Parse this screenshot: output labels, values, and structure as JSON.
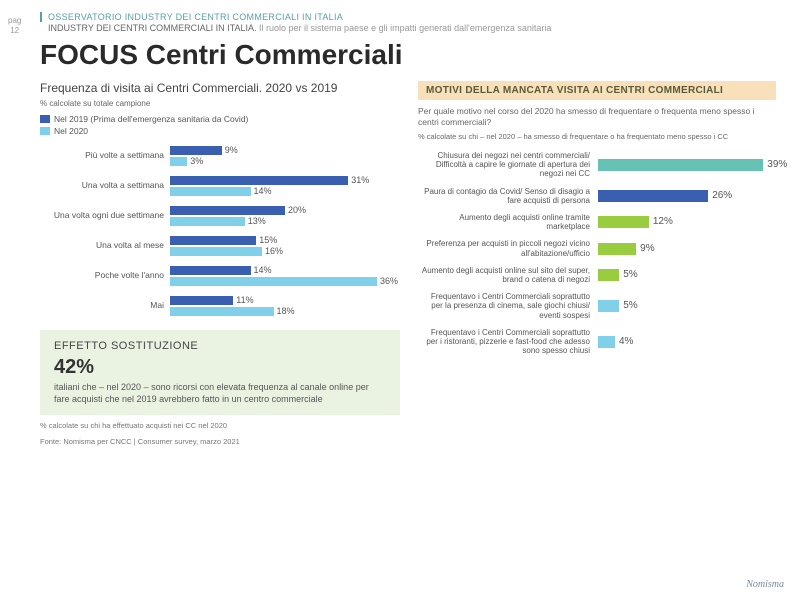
{
  "page": {
    "label": "pag",
    "number": "12"
  },
  "header": {
    "line1": "OSSERVATORIO INDUSTRY DEI CENTRI COMMERCIALI IN ITALIA",
    "line2_dark": "INDUSTRY DEI CENTRI COMMERCIALI IN ITALIA.",
    "line2_light": " Il ruolo per il sistema paese e gli impatti generati dall'emergenza sanitaria"
  },
  "title": "FOCUS Centri Commerciali",
  "left": {
    "section_title": "Frequenza di visita ai Centri Commerciali. 2020 vs 2019",
    "subnote": "% calcolate su totale campione",
    "legend": [
      {
        "label": "Nel 2019 (Prima dell'emergenza sanitaria da Covid)",
        "color": "#3b5fb0"
      },
      {
        "label": "Nel 2020",
        "color": "#7fd0e8"
      }
    ],
    "chart": {
      "max": 40,
      "bar_colors": [
        "#3b5fb0",
        "#7fd0e8"
      ],
      "rows": [
        {
          "label": "Più volte a settimana",
          "v2019": 9,
          "v2020": 3
        },
        {
          "label": "Una volta a settimana",
          "v2019": 31,
          "v2020": 14
        },
        {
          "label": "Una volta ogni due settimane",
          "v2019": 20,
          "v2020": 13
        },
        {
          "label": "Una volta al mese",
          "v2019": 15,
          "v2020": 16
        },
        {
          "label": "Poche volte l'anno",
          "v2019": 14,
          "v2020": 36
        },
        {
          "label": "Mai",
          "v2019": 11,
          "v2020": 18
        }
      ]
    },
    "effetto": {
      "title": "EFFETTO SOSTITUZIONE",
      "big": "42%",
      "text": "italiani che – nel 2020 – sono ricorsi con elevata frequenza al canale online per fare acquisti che nel 2019 avrebbero fatto in un centro commerciale"
    },
    "footnote1": "% calcolate su chi ha effettuato acquisti nei CC nel 2020",
    "footnote2": "Fonte: Nomisma per CNCC | Consumer survey, marzo 2021"
  },
  "right": {
    "title": "MOTIVI DELLA MANCATA VISITA AI CENTRI COMMERCIALI",
    "question": "Per quale motivo nel corso del 2020 ha smesso di frequentare o frequenta meno spesso i centri commerciali?",
    "subnote": "% calcolate su chi – nel 2020 – ha smesso di frequentare o ha frequentato meno spesso i CC",
    "chart": {
      "max": 42,
      "rows": [
        {
          "label": "Chiusura dei negozi nei centri commerciali/ Difficoltà a capire le giornate di apertura dei negozi nei CC",
          "value": 39,
          "color": "#66c2b5"
        },
        {
          "label": "Paura di contagio da Covid/ Senso di disagio a fare acquisti di persona",
          "value": 26,
          "color": "#3b5fb0"
        },
        {
          "label": "Aumento degli acquisti online tramite marketplace",
          "value": 12,
          "color": "#9acc3f"
        },
        {
          "label": "Preferenza per acquisti in piccoli negozi vicino all'abitazione/ufficio",
          "value": 9,
          "color": "#9acc3f"
        },
        {
          "label": "Aumento degli acquisti online sul sito del super, brand o catena di negozi",
          "value": 5,
          "color": "#9acc3f"
        },
        {
          "label": "Frequentavo i Centri Commerciali soprattutto per la presenza di cinema, sale giochi chiusi/ eventi sospesi",
          "value": 5,
          "color": "#7fd0e8"
        },
        {
          "label": "Frequentavo i Centri Commerciali soprattutto per i ristoranti, pizzerie e fast-food che adesso sono spesso chiusi",
          "value": 4,
          "color": "#7fd0e8"
        }
      ]
    }
  },
  "logo": "Nomisma"
}
